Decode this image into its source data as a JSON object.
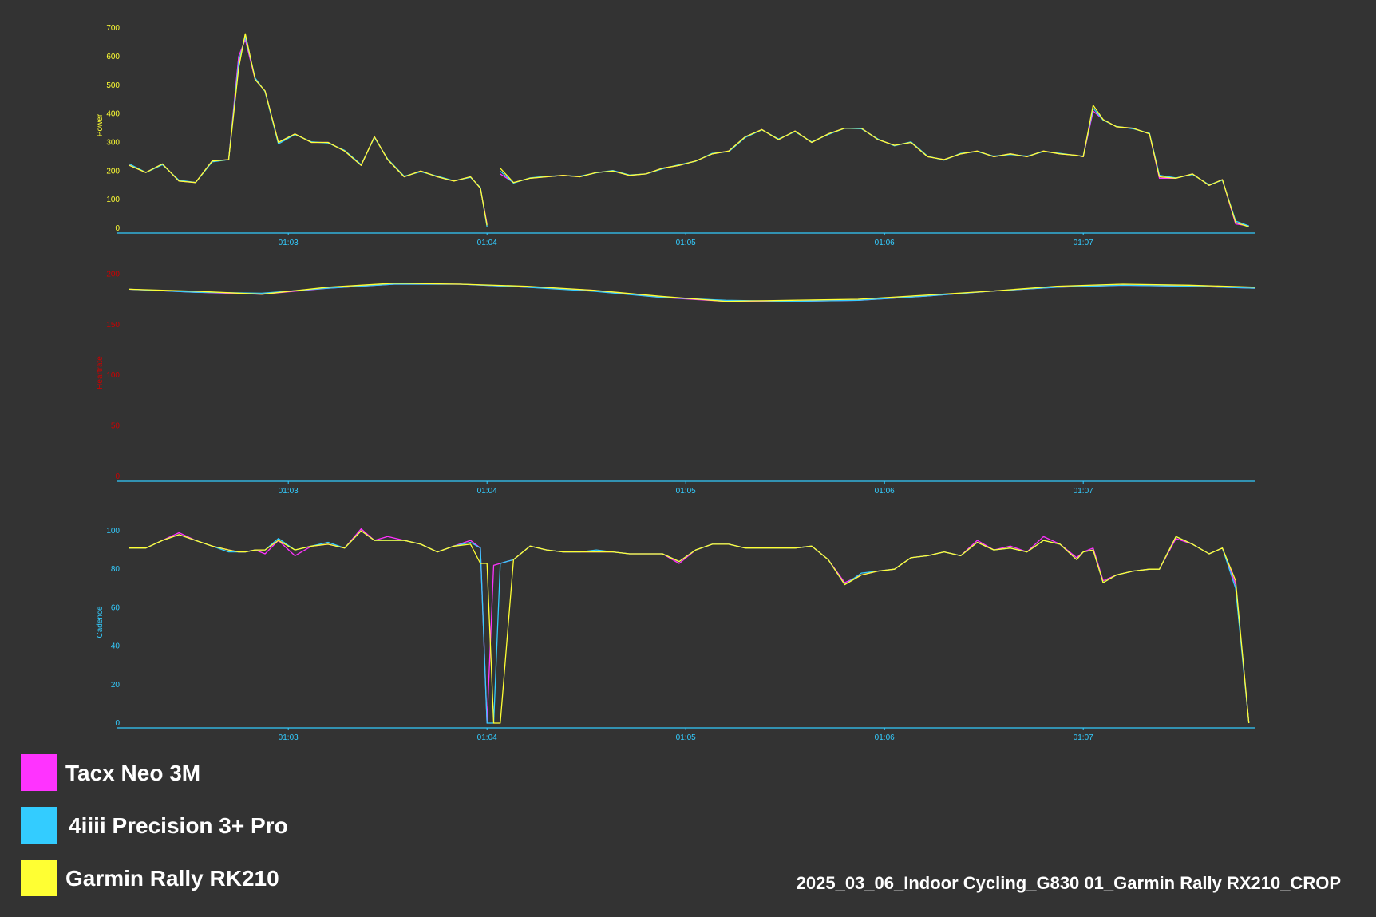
{
  "caption": "2025_03_06_Indoor Cycling_G830 01_Garmin Rally RX210_CROP",
  "chart_data": [
    {
      "type": "line",
      "y_label": "Power",
      "tick_color": "#ffff33",
      "axis_color": "#33ccff",
      "xlim": [
        3732,
        4072
      ],
      "xticks": [
        {
          "value": 3780,
          "label": "01:03"
        },
        {
          "value": 3840,
          "label": "01:04"
        },
        {
          "value": 3900,
          "label": "01:05"
        },
        {
          "value": 3960,
          "label": "01:06"
        },
        {
          "value": 4020,
          "label": "01:07"
        }
      ],
      "ylim": [
        0,
        720
      ],
      "yticks": [
        0,
        100,
        200,
        300,
        400,
        500,
        600,
        700
      ],
      "x": [
        3732,
        3737,
        3742,
        3747,
        3752,
        3757,
        3762,
        3765,
        3767,
        3770,
        3773,
        3777,
        3782,
        3787,
        3792,
        3797,
        3802,
        3806,
        3810,
        3815,
        3820,
        3825,
        3830,
        3835,
        3838,
        3840,
        3842,
        3844,
        3848,
        3853,
        3858,
        3863,
        3868,
        3873,
        3878,
        3883,
        3888,
        3893,
        3898,
        3903,
        3908,
        3913,
        3918,
        3923,
        3928,
        3933,
        3938,
        3943,
        3948,
        3953,
        3958,
        3963,
        3968,
        3973,
        3978,
        3983,
        3988,
        3993,
        3998,
        4003,
        4008,
        4013,
        4018,
        4020,
        4023,
        4026,
        4030,
        4035,
        4040,
        4043,
        4048,
        4053,
        4058,
        4062,
        4066,
        4070
      ],
      "series": [
        {
          "name": "Tacx Neo 3M",
          "color": "#ff33ff",
          "values": [
            220,
            195,
            225,
            165,
            160,
            235,
            240,
            600,
            660,
            520,
            480,
            300,
            330,
            300,
            300,
            270,
            220,
            320,
            240,
            180,
            200,
            180,
            165,
            180,
            140,
            15,
            null,
            190,
            160,
            175,
            180,
            185,
            180,
            195,
            200,
            185,
            190,
            210,
            220,
            235,
            260,
            270,
            320,
            345,
            310,
            340,
            300,
            330,
            350,
            350,
            310,
            290,
            300,
            250,
            240,
            260,
            270,
            250,
            260,
            250,
            270,
            260,
            255,
            250,
            410,
            380,
            355,
            350,
            330,
            175,
            175,
            190,
            150,
            170,
            15,
            8
          ]
        },
        {
          "name": "4iiii Precision 3+ Pro",
          "color": "#33ccff",
          "values": [
            225,
            195,
            222,
            168,
            160,
            232,
            240,
            580,
            670,
            525,
            478,
            295,
            328,
            302,
            298,
            272,
            222,
            318,
            242,
            182,
            198,
            182,
            166,
            178,
            142,
            5,
            null,
            200,
            158,
            176,
            182,
            184,
            182,
            194,
            202,
            186,
            190,
            208,
            222,
            234,
            262,
            268,
            318,
            344,
            312,
            338,
            302,
            328,
            350,
            348,
            312,
            288,
            302,
            252,
            238,
            262,
            268,
            252,
            258,
            252,
            268,
            262,
            254,
            252,
            420,
            378,
            356,
            348,
            332,
            185,
            176,
            188,
            152,
            168,
            25,
            8
          ]
        },
        {
          "name": "Garmin Rally RK210",
          "color": "#ffff33",
          "values": [
            220,
            195,
            225,
            165,
            160,
            235,
            240,
            560,
            680,
            520,
            480,
            300,
            330,
            300,
            300,
            270,
            220,
            320,
            240,
            180,
            200,
            180,
            165,
            180,
            140,
            10,
            null,
            210,
            160,
            175,
            180,
            185,
            180,
            195,
            200,
            185,
            190,
            210,
            220,
            235,
            260,
            270,
            320,
            345,
            310,
            340,
            300,
            330,
            350,
            350,
            310,
            290,
            300,
            250,
            240,
            260,
            270,
            250,
            260,
            250,
            270,
            260,
            255,
            250,
            430,
            380,
            355,
            350,
            330,
            180,
            175,
            190,
            150,
            170,
            20,
            5
          ]
        }
      ]
    },
    {
      "type": "line",
      "y_label": "Heartrate",
      "tick_color": "#cc0000",
      "axis_color": "#33ccff",
      "xlim": [
        3732,
        4072
      ],
      "xticks": [
        {
          "value": 3780,
          "label": "01:03"
        },
        {
          "value": 3840,
          "label": "01:04"
        },
        {
          "value": 3900,
          "label": "01:05"
        },
        {
          "value": 3960,
          "label": "01:06"
        },
        {
          "value": 4020,
          "label": "01:07"
        }
      ],
      "ylim": [
        0,
        205
      ],
      "yticks": [
        0,
        50,
        100,
        150,
        200
      ],
      "x": [
        3732,
        3752,
        3772,
        3792,
        3812,
        3832,
        3852,
        3872,
        3892,
        3912,
        3932,
        3952,
        3972,
        3992,
        4012,
        4032,
        4052,
        4072
      ],
      "series": [
        {
          "color": "#ff33ff",
          "values": [
            185,
            182,
            180,
            186,
            190,
            190,
            187,
            184,
            177,
            173,
            173,
            174,
            178,
            183,
            187,
            189,
            188,
            186
          ]
        },
        {
          "color": "#33ccff",
          "values": [
            185,
            182,
            181,
            186,
            190,
            190,
            187,
            183,
            177,
            174,
            173,
            174,
            178,
            183,
            187,
            189,
            188,
            186
          ]
        },
        {
          "color": "#ffff33",
          "values": [
            185,
            183,
            180,
            187,
            191,
            190,
            188,
            184,
            178,
            173,
            174,
            175,
            179,
            183,
            188,
            190,
            189,
            187
          ]
        }
      ]
    },
    {
      "type": "line",
      "y_label": "Cadence",
      "tick_color": "#33ccff",
      "axis_color": "#33ccff",
      "xlim": [
        3732,
        4072
      ],
      "xticks": [
        {
          "value": 3780,
          "label": "01:03"
        },
        {
          "value": 3840,
          "label": "01:04"
        },
        {
          "value": 3900,
          "label": "01:05"
        },
        {
          "value": 3960,
          "label": "01:06"
        },
        {
          "value": 4020,
          "label": "01:07"
        }
      ],
      "ylim": [
        0,
        105
      ],
      "yticks": [
        0,
        20,
        40,
        60,
        80,
        100
      ],
      "x": [
        3732,
        3737,
        3742,
        3747,
        3752,
        3757,
        3762,
        3765,
        3767,
        3770,
        3773,
        3777,
        3782,
        3787,
        3792,
        3797,
        3802,
        3806,
        3810,
        3815,
        3820,
        3825,
        3830,
        3835,
        3838,
        3840,
        3842,
        3844,
        3848,
        3853,
        3858,
        3863,
        3868,
        3873,
        3878,
        3883,
        3888,
        3893,
        3898,
        3903,
        3908,
        3913,
        3918,
        3923,
        3928,
        3933,
        3938,
        3943,
        3948,
        3953,
        3958,
        3963,
        3968,
        3973,
        3978,
        3983,
        3988,
        3993,
        3998,
        4003,
        4008,
        4013,
        4018,
        4020,
        4023,
        4026,
        4030,
        4035,
        4040,
        4043,
        4048,
        4053,
        4058,
        4062,
        4066,
        4070
      ],
      "series": [
        {
          "color": "#ff33ff",
          "values": [
            91,
            91,
            95,
            99,
            95,
            92,
            90,
            89,
            89,
            90,
            88,
            95,
            87,
            92,
            93,
            91,
            101,
            95,
            97,
            95,
            93,
            89,
            92,
            95,
            91,
            0,
            82,
            83,
            85,
            92,
            90,
            89,
            89,
            89,
            89,
            88,
            88,
            88,
            83,
            90,
            93,
            93,
            91,
            91,
            91,
            91,
            92,
            85,
            73,
            77,
            79,
            80,
            86,
            87,
            89,
            87,
            95,
            90,
            92,
            89,
            97,
            93,
            86,
            89,
            91,
            74,
            77,
            79,
            80,
            80,
            96,
            93,
            88,
            91,
            72,
            0
          ]
        },
        {
          "color": "#33ccff",
          "values": [
            91,
            91,
            95,
            98,
            95,
            92,
            89,
            89,
            89,
            90,
            90,
            96,
            90,
            92,
            94,
            91,
            100,
            95,
            95,
            95,
            93,
            89,
            92,
            94,
            91,
            0,
            0,
            83,
            85,
            92,
            90,
            89,
            89,
            90,
            89,
            88,
            88,
            88,
            84,
            90,
            93,
            93,
            91,
            91,
            91,
            91,
            92,
            85,
            72,
            78,
            79,
            80,
            86,
            87,
            89,
            87,
            94,
            90,
            91,
            89,
            95,
            93,
            85,
            89,
            90,
            73,
            77,
            79,
            80,
            80,
            97,
            93,
            88,
            91,
            70,
            0
          ]
        },
        {
          "color": "#ffff33",
          "values": [
            91,
            91,
            95,
            98,
            95,
            92,
            90,
            89,
            89,
            90,
            90,
            95,
            90,
            92,
            93,
            91,
            100,
            95,
            95,
            95,
            93,
            89,
            92,
            93,
            83,
            83,
            0,
            0,
            85,
            92,
            90,
            89,
            89,
            89,
            89,
            88,
            88,
            88,
            84,
            90,
            93,
            93,
            91,
            91,
            91,
            91,
            92,
            85,
            72,
            77,
            79,
            80,
            86,
            87,
            89,
            87,
            94,
            90,
            91,
            89,
            95,
            93,
            85,
            89,
            90,
            73,
            77,
            79,
            80,
            80,
            97,
            93,
            88,
            91,
            74,
            0
          ]
        }
      ]
    }
  ]
}
